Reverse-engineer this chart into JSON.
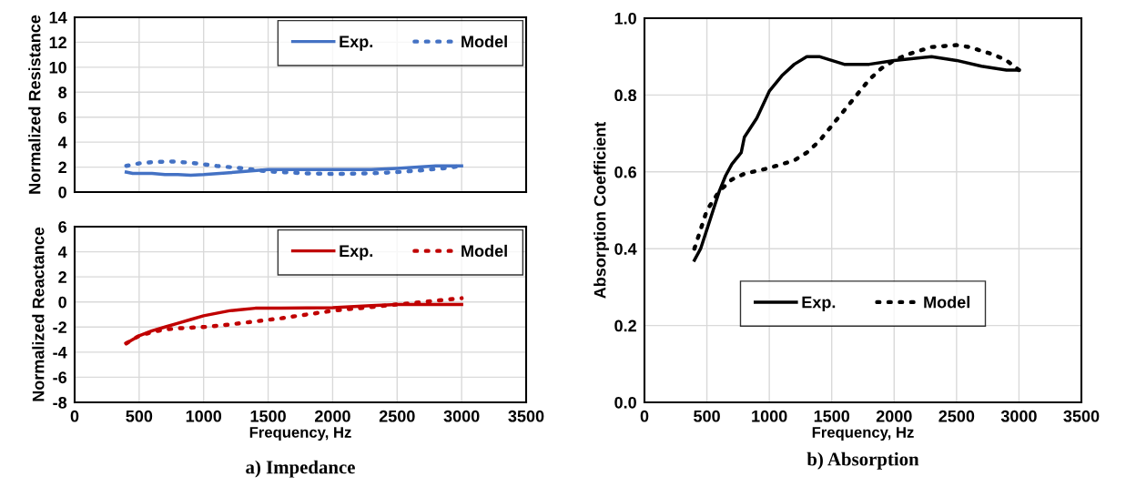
{
  "chart_data": [
    {
      "type": "line",
      "ylabel": "Normalized Resistance",
      "xlim": [
        0,
        3500
      ],
      "xticks": [
        0,
        500,
        1000,
        1500,
        2000,
        2500,
        3000,
        3500
      ],
      "ylim": [
        0,
        14
      ],
      "yticks": [
        0,
        2,
        4,
        6,
        8,
        10,
        12,
        14
      ],
      "tick_labels": "y",
      "grid": true,
      "legend": "top right",
      "series": [
        {
          "name": "Exp.",
          "color": "#4472c4",
          "line_style": "solid",
          "x": [
            400,
            450,
            600,
            700,
            800,
            900,
            1000,
            1200,
            1500,
            2000,
            2300,
            2500,
            2800,
            3000
          ],
          "values": [
            1.6,
            1.5,
            1.5,
            1.4,
            1.4,
            1.35,
            1.4,
            1.55,
            1.8,
            1.8,
            1.8,
            1.9,
            2.1,
            2.1
          ]
        },
        {
          "name": "Model",
          "color": "#4472c4",
          "line_style": "dotted",
          "x": [
            400,
            500,
            600,
            750,
            900,
            1100,
            1300,
            1500,
            1800,
            2000,
            2300,
            2500,
            2700,
            2900,
            3000
          ],
          "values": [
            2.1,
            2.3,
            2.4,
            2.45,
            2.35,
            2.1,
            1.9,
            1.65,
            1.5,
            1.45,
            1.5,
            1.6,
            1.75,
            1.95,
            2.1
          ]
        }
      ]
    },
    {
      "type": "line",
      "ylabel": "Normalized Reactance",
      "xlabel": "Frequency, Hz",
      "annotations": [
        "a) Impedance"
      ],
      "xlim": [
        0,
        3500
      ],
      "xticks": [
        0,
        500,
        1000,
        1500,
        2000,
        2500,
        3000,
        3500
      ],
      "ylim": [
        -8,
        6
      ],
      "yticks": [
        -8,
        -6,
        -4,
        -2,
        0,
        2,
        4,
        6
      ],
      "grid": true,
      "legend": "top right",
      "series": [
        {
          "name": "Exp.",
          "color": "#c00000",
          "line_style": "solid",
          "x": [
            400,
            450,
            500,
            600,
            700,
            800,
            900,
            1000,
            1100,
            1200,
            1300,
            1400,
            1600,
            2000,
            2300,
            2500,
            3000
          ],
          "values": [
            -3.3,
            -3.0,
            -2.7,
            -2.3,
            -2.0,
            -1.7,
            -1.4,
            -1.1,
            -0.9,
            -0.7,
            -0.6,
            -0.5,
            -0.5,
            -0.45,
            -0.3,
            -0.2,
            -0.2
          ]
        },
        {
          "name": "Model",
          "color": "#c00000",
          "line_style": "dotted",
          "x": [
            400,
            450,
            500,
            600,
            700,
            800,
            1000,
            1200,
            1400,
            1600,
            1800,
            2000,
            2200,
            2400,
            2600,
            2800,
            3000
          ],
          "values": [
            -3.3,
            -3.0,
            -2.7,
            -2.4,
            -2.2,
            -2.1,
            -2.0,
            -1.8,
            -1.55,
            -1.3,
            -1.0,
            -0.7,
            -0.5,
            -0.3,
            -0.1,
            0.1,
            0.3
          ]
        }
      ]
    },
    {
      "type": "line",
      "ylabel": "Absorption Coefficient",
      "xlabel": "Frequency, Hz",
      "annotations": [
        "b) Absorption"
      ],
      "xlim": [
        0,
        3500
      ],
      "xticks": [
        0,
        500,
        1000,
        1500,
        2000,
        2500,
        3000,
        3500
      ],
      "ylim": [
        0,
        1
      ],
      "yticks": [
        {
          "value": 0,
          "label": "0.0"
        },
        0.2,
        0.4,
        0.6,
        0.8,
        {
          "value": 1,
          "label": "1.0"
        }
      ],
      "grid": true,
      "legend": "bottom",
      "series": [
        {
          "name": "Exp.",
          "color": "#000000",
          "line_style": "solid",
          "x": [
            400,
            450,
            500,
            550,
            600,
            650,
            700,
            775,
            800,
            900,
            1000,
            1100,
            1200,
            1300,
            1400,
            1500,
            1600,
            1800,
            2000,
            2300,
            2500,
            2700,
            2900,
            3000
          ],
          "values": [
            0.37,
            0.4,
            0.45,
            0.5,
            0.55,
            0.59,
            0.62,
            0.65,
            0.69,
            0.74,
            0.81,
            0.85,
            0.88,
            0.9,
            0.9,
            0.89,
            0.88,
            0.88,
            0.89,
            0.9,
            0.89,
            0.875,
            0.865,
            0.865
          ]
        },
        {
          "name": "Model",
          "color": "#000000",
          "line_style": "dotted",
          "x": [
            400,
            450,
            500,
            600,
            700,
            800,
            1000,
            1200,
            1300,
            1400,
            1500,
            1600,
            1700,
            1800,
            1900,
            2000,
            2100,
            2300,
            2500,
            2600,
            2800,
            2900,
            3000
          ],
          "values": [
            0.4,
            0.45,
            0.5,
            0.55,
            0.58,
            0.595,
            0.61,
            0.63,
            0.65,
            0.68,
            0.72,
            0.76,
            0.8,
            0.84,
            0.87,
            0.89,
            0.905,
            0.925,
            0.93,
            0.925,
            0.905,
            0.89,
            0.865
          ]
        }
      ]
    }
  ]
}
